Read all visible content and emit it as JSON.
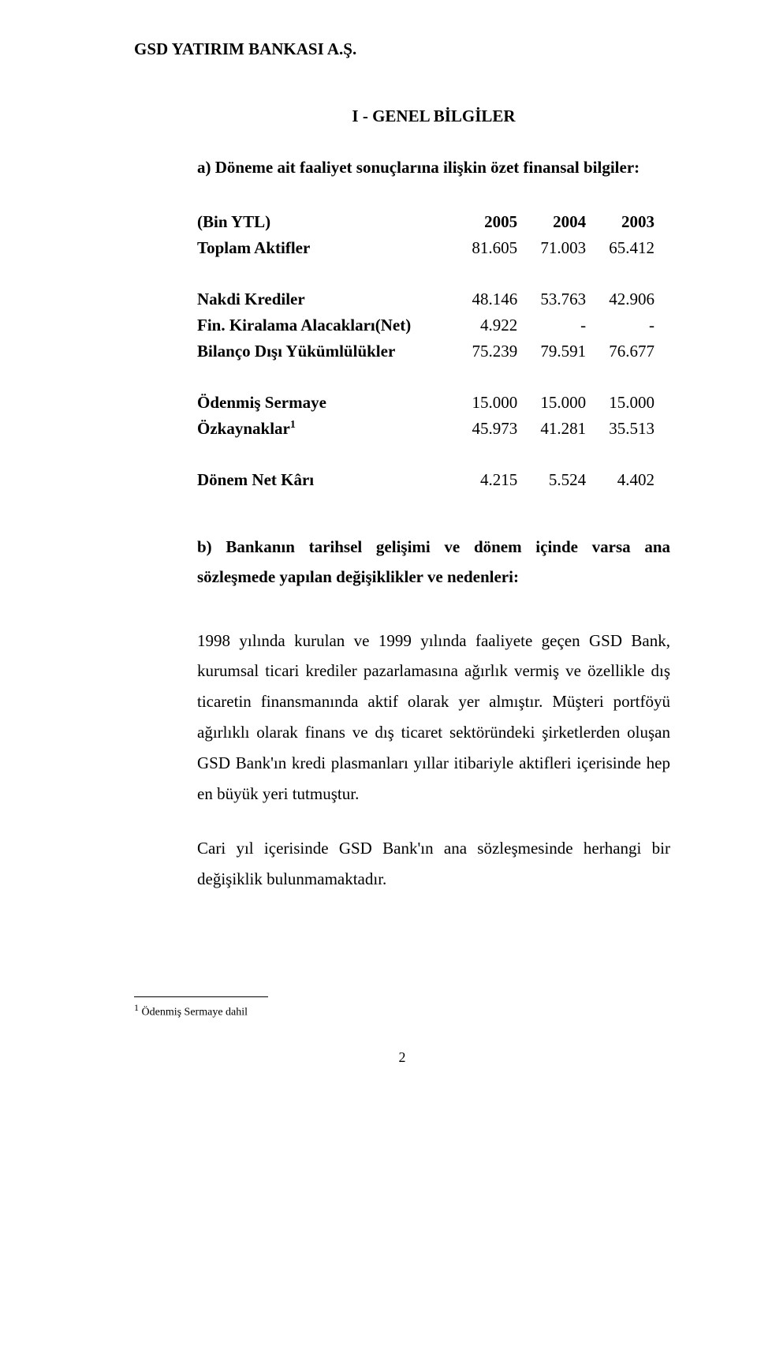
{
  "company": "GSD YATIRIM BANKASI A.Ş.",
  "section_title": "I - GENEL BİLGİLER",
  "subsection_a": {
    "title": "a) Döneme ait faaliyet sonuçlarına ilişkin özet finansal bilgiler:",
    "years": [
      "2005",
      "2004",
      "2003"
    ],
    "currency_label": "(Bin YTL)",
    "rows": [
      {
        "label": "Toplam Aktifler",
        "values": [
          "81.605",
          "71.003",
          "65.412"
        ]
      }
    ],
    "rows2": [
      {
        "label": "Nakdi Krediler",
        "values": [
          "48.146",
          "53.763",
          "42.906"
        ]
      },
      {
        "label": "Fin. Kiralama Alacakları(Net)",
        "values": [
          "4.922",
          "-",
          "-"
        ]
      },
      {
        "label": "Bilanço Dışı Yükümlülükler",
        "values": [
          "75.239",
          "79.591",
          "76.677"
        ]
      }
    ],
    "rows3": [
      {
        "label": "Ödenmiş Sermaye",
        "values": [
          "15.000",
          "15.000",
          "15.000"
        ]
      },
      {
        "label": "Özkaynaklar",
        "sup": "1",
        "values": [
          "45.973",
          "41.281",
          "35.513"
        ]
      }
    ],
    "rows4": [
      {
        "label": "Dönem Net Kârı",
        "values": [
          "4.215",
          "5.524",
          "4.402"
        ]
      }
    ]
  },
  "subsection_b": {
    "title": "b) Bankanın tarihsel gelişimi ve dönem içinde varsa ana sözleşmede yapılan değişiklikler ve nedenleri:",
    "para1": "1998 yılında kurulan ve 1999 yılında faaliyete geçen GSD Bank, kurumsal ticari krediler pazarlamasına ağırlık vermiş ve özellikle dış ticaretin finansmanında aktif olarak yer almıştır. Müşteri portföyü ağırlıklı olarak finans ve dış ticaret sektöründeki şirketlerden oluşan GSD Bank'ın kredi plasmanları yıllar itibariyle aktifleri içerisinde hep en büyük yeri tutmuştur.",
    "para2": "Cari yıl içerisinde GSD Bank'ın ana sözleşmesinde  herhangi bir değişiklik bulunmamaktadır."
  },
  "footnote": {
    "marker": "1",
    "text": " Ödenmiş Sermaye dahil"
  },
  "page_number": "2",
  "styles": {
    "background_color": "#ffffff",
    "text_color": "#000000",
    "body_fontsize": 21,
    "footnote_fontsize": 14,
    "pagenum_fontsize": 18,
    "font_family": "Times New Roman",
    "line_height": 1.85
  }
}
